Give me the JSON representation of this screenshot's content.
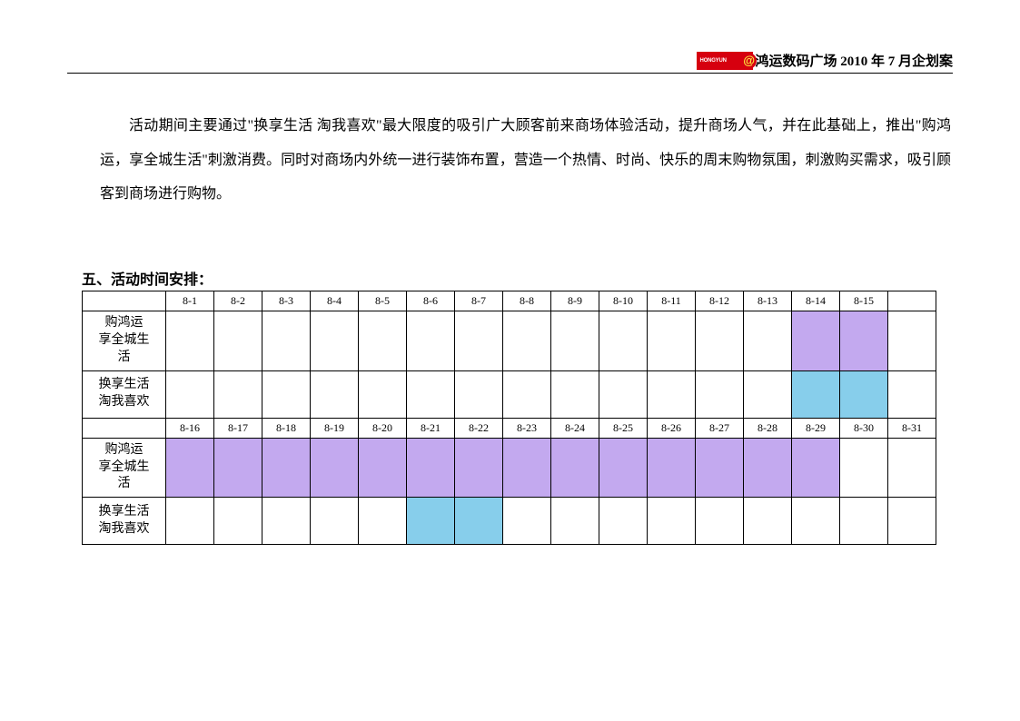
{
  "header": {
    "logo_text": "HONGYUN",
    "logo_at": "@",
    "title": "鸿运数码广场 2010 年 7 月企划案"
  },
  "paragraph": "活动期间主要通过\"换享生活 淘我喜欢\"最大限度的吸引广大顾客前来商场体验活动，提升商场人气，并在此基础上，推出\"购鸿运，享全城生活\"刺激消费。同时对商场内外统一进行装饰布置，营造一个热情、时尚、快乐的周末购物氛围，刺激购买需求，吸引顾客到商场进行购物。",
  "section_title": "五、活动时间安排：",
  "schedule": {
    "row_labels": {
      "a": "购鸿运享全城生活",
      "b": "换享生活淘我喜欢"
    },
    "colors": {
      "purple": "#c3a9ef",
      "blue": "#87ceeb",
      "none": "#ffffff"
    },
    "block1": {
      "dates": [
        "8-1",
        "8-2",
        "8-3",
        "8-4",
        "8-5",
        "8-6",
        "8-7",
        "8-8",
        "8-9",
        "8-10",
        "8-11",
        "8-12",
        "8-13",
        "8-14",
        "8-15",
        ""
      ],
      "row_a_fill": [
        "",
        "",
        "",
        "",
        "",
        "",
        "",
        "",
        "",
        "",
        "",
        "",
        "",
        "purple",
        "purple",
        ""
      ],
      "row_b_fill": [
        "",
        "",
        "",
        "",
        "",
        "",
        "",
        "",
        "",
        "",
        "",
        "",
        "",
        "blue",
        "blue",
        ""
      ]
    },
    "block2": {
      "dates": [
        "8-16",
        "8-17",
        "8-18",
        "8-19",
        "8-20",
        "8-21",
        "8-22",
        "8-23",
        "8-24",
        "8-25",
        "8-26",
        "8-27",
        "8-28",
        "8-29",
        "8-30",
        "8-31"
      ],
      "row_a_fill": [
        "purple",
        "purple",
        "purple",
        "purple",
        "purple",
        "purple",
        "purple",
        "purple",
        "purple",
        "purple",
        "purple",
        "purple",
        "purple",
        "purple",
        "",
        ""
      ],
      "row_b_fill": [
        "",
        "",
        "",
        "",
        "",
        "blue",
        "blue",
        "",
        "",
        "",
        "",
        "",
        "",
        "",
        "",
        ""
      ]
    }
  }
}
